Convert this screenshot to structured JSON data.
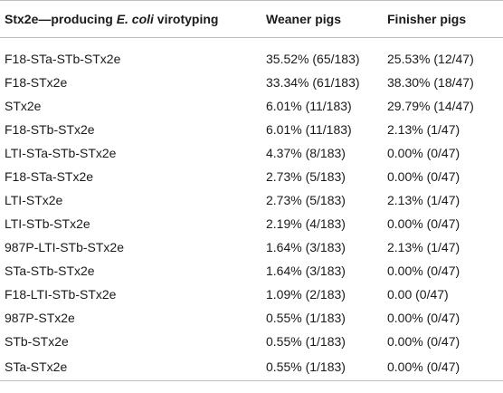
{
  "table": {
    "header": {
      "col1_prefix": "Stx2e—producing ",
      "col1_italic": "E. coli",
      "col1_suffix": " virotyping",
      "col2": "Weaner pigs",
      "col3": "Finisher pigs"
    },
    "rows": [
      {
        "virotype": "F18-STa-STb-STx2e",
        "weaner": "35.52% (65/183)",
        "finisher": "25.53% (12/47)"
      },
      {
        "virotype": "F18-STx2e",
        "weaner": "33.34% (61/183)",
        "finisher": "38.30% (18/47)"
      },
      {
        "virotype": "STx2e",
        "weaner": "6.01% (11/183)",
        "finisher": "29.79% (14/47)"
      },
      {
        "virotype": "F18-STb-STx2e",
        "weaner": "6.01% (11/183)",
        "finisher": "2.13% (1/47)"
      },
      {
        "virotype": "LTI-STa-STb-STx2e",
        "weaner": "4.37% (8/183)",
        "finisher": "0.00% (0/47)"
      },
      {
        "virotype": "F18-STa-STx2e",
        "weaner": "2.73% (5/183)",
        "finisher": "0.00% (0/47)"
      },
      {
        "virotype": "LTI-STx2e",
        "weaner": "2.73% (5/183)",
        "finisher": "2.13% (1/47)"
      },
      {
        "virotype": "LTI-STb-STx2e",
        "weaner": "2.19% (4/183)",
        "finisher": "0.00% (0/47)"
      },
      {
        "virotype": "987P-LTI-STb-STx2e",
        "weaner": "1.64% (3/183)",
        "finisher": "2.13% (1/47)"
      },
      {
        "virotype": "STa-STb-STx2e",
        "weaner": "1.64% (3/183)",
        "finisher": "0.00% (0/47)"
      },
      {
        "virotype": "F18-LTI-STb-STx2e",
        "weaner": "1.09% (2/183)",
        "finisher": "0.00 (0/47)"
      },
      {
        "virotype": "987P-STx2e",
        "weaner": "0.55% (1/183)",
        "finisher": "0.00% (0/47)"
      },
      {
        "virotype": "STb-STx2e",
        "weaner": "0.55% (1/183)",
        "finisher": "0.00% (0/47)"
      },
      {
        "virotype": "STa-STx2e",
        "weaner": "0.55% (1/183)",
        "finisher": "0.00% (0/47)"
      }
    ]
  }
}
